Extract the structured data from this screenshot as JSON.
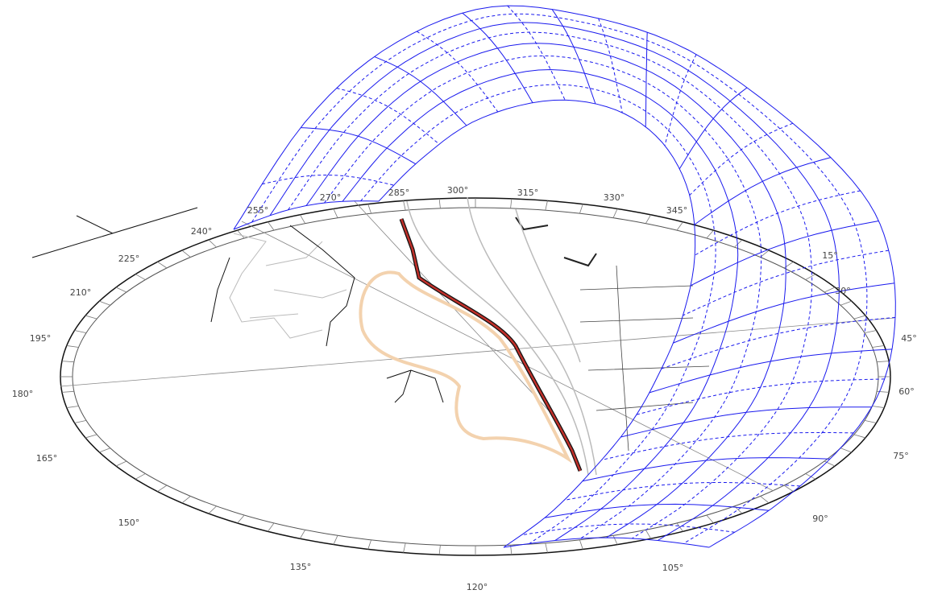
{
  "labels": [
    "240°",
    "225°",
    "210°",
    "195°",
    "180°",
    "165°",
    "150°",
    "135°",
    "120°",
    "105°",
    "90°",
    "75°",
    "60°",
    "45°",
    "30°",
    "15°",
    "345°",
    "330°",
    "315°",
    "300°",
    "285°",
    "270°",
    "255°"
  ]
}
